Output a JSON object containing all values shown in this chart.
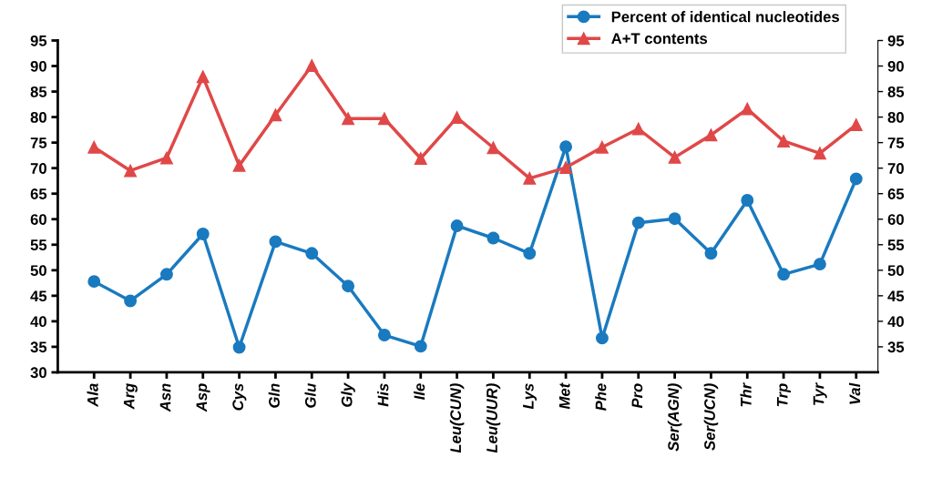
{
  "chart_data": {
    "type": "line",
    "categories": [
      "Ala",
      "Arg",
      "Asn",
      "Asp",
      "Cys",
      "Gln",
      "Glu",
      "Gly",
      "His",
      "Ile",
      "Leu(CUN)",
      "Leu(UUR)",
      "Lys",
      "Met",
      "Phe",
      "Pro",
      "Ser(AGN)",
      "Ser(UCN)",
      "Thr",
      "Trp",
      "Tyr",
      "Val"
    ],
    "series": [
      {
        "name": "Percent of identical nucleotides",
        "color": "#1a7abf",
        "marker": "circle",
        "values": [
          47.8,
          44.0,
          49.2,
          57.1,
          34.9,
          55.6,
          53.3,
          46.9,
          37.3,
          35.1,
          58.7,
          56.3,
          53.3,
          74.2,
          36.7,
          59.3,
          60.1,
          53.3,
          63.7,
          49.2,
          51.2,
          67.9
        ]
      },
      {
        "name": "A+T contents",
        "color": "#e04848",
        "marker": "triangle",
        "values": [
          74.1,
          69.5,
          72.0,
          87.9,
          70.5,
          80.4,
          90.1,
          79.7,
          79.7,
          71.9,
          79.9,
          74.0,
          68.0,
          70.1,
          74.1,
          77.7,
          72.1,
          76.5,
          81.6,
          75.3,
          72.9,
          78.5
        ]
      }
    ],
    "ylim": [
      30,
      95
    ],
    "yticks": [
      30,
      35,
      40,
      45,
      50,
      55,
      60,
      65,
      70,
      75,
      80,
      85,
      90,
      95
    ],
    "y2lim": [
      30,
      95
    ],
    "y2ticks": [
      35,
      40,
      45,
      50,
      55,
      60,
      65,
      70,
      75,
      80,
      85,
      90,
      95
    ],
    "grid": false,
    "legend": "top right"
  }
}
